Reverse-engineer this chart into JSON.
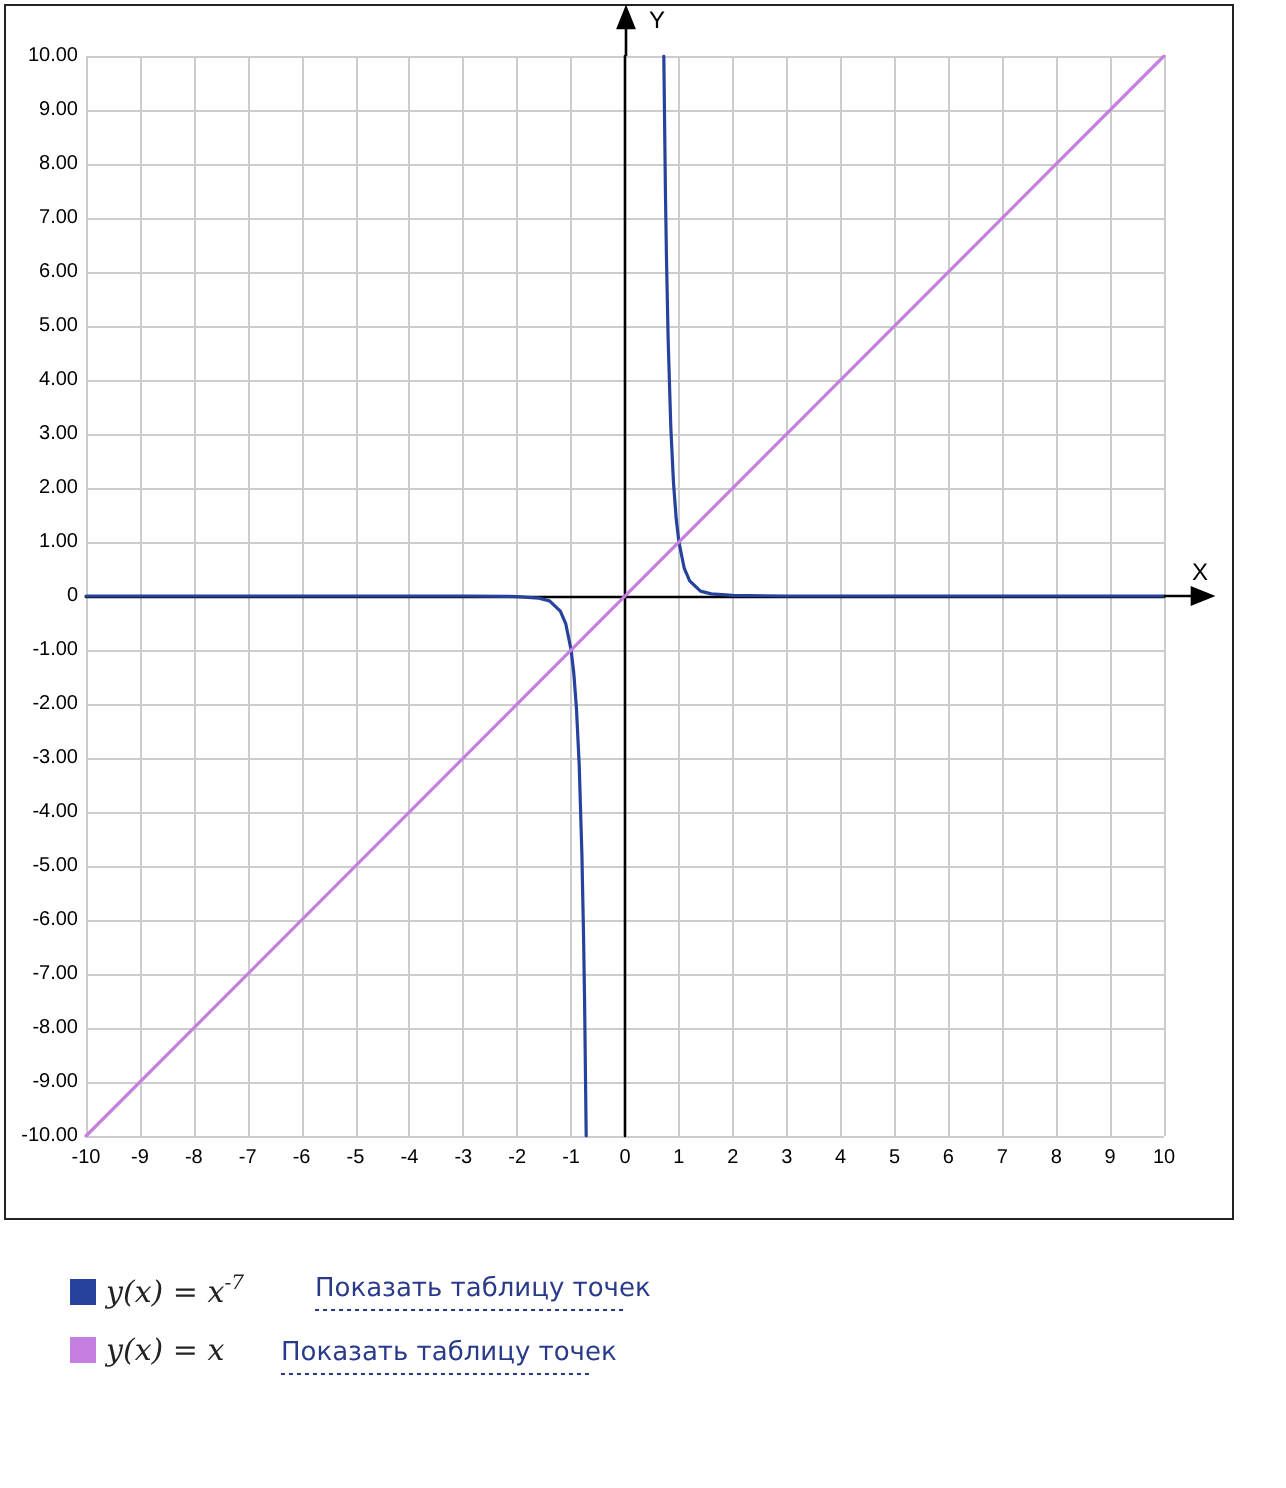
{
  "chart_data": {
    "type": "line",
    "xlabel": "X",
    "ylabel": "Y",
    "series": [
      {
        "name": "y(x) = x$^{-7}$",
        "color": "#26429c",
        "x": [
          -10,
          -5,
          -3,
          -2,
          -1.6,
          -1.4,
          -1.2,
          -1.1,
          -1,
          -0.95,
          -0.9,
          -0.85,
          -0.8,
          -0.77,
          -0.75,
          -0.72,
          0,
          0.72,
          0.75,
          0.77,
          0.8,
          0.85,
          0.9,
          0.95,
          1,
          1.1,
          1.2,
          1.4,
          1.6,
          2,
          3,
          5,
          10
        ],
        "values": [
          0,
          0,
          0,
          -0.01,
          -0.04,
          -0.09,
          -0.28,
          -0.51,
          -1,
          -1.43,
          -2.09,
          -3.12,
          -4.77,
          -6.24,
          -7.49,
          -10,
          null,
          10,
          7.49,
          6.24,
          4.77,
          3.12,
          2.09,
          1.43,
          1,
          0.51,
          0.28,
          0.09,
          0.04,
          0.01,
          0,
          0,
          0
        ]
      },
      {
        "name": "y(x) = x",
        "color": "#c47fe0",
        "x": [
          -10,
          10
        ],
        "values": [
          -10,
          10
        ]
      }
    ],
    "xlim": [
      -10,
      10
    ],
    "xticks": [
      -10,
      -9,
      -8,
      -7,
      -6,
      -5,
      -4,
      -3,
      -2,
      -1,
      0,
      1,
      2,
      3,
      4,
      5,
      6,
      7,
      8,
      9,
      10
    ],
    "ylim": [
      -10,
      10
    ],
    "yticks": [
      {
        "value": -10,
        "label": "-10.00"
      },
      {
        "value": -9,
        "label": "-9.00"
      },
      {
        "value": -8,
        "label": "-8.00"
      },
      {
        "value": -7,
        "label": "-7.00"
      },
      {
        "value": -6,
        "label": "-6.00"
      },
      {
        "value": -5,
        "label": "-5.00"
      },
      {
        "value": -4,
        "label": "-4.00"
      },
      {
        "value": -3,
        "label": "-3.00"
      },
      {
        "value": -2,
        "label": "-2.00"
      },
      {
        "value": -1,
        "label": "-1.00"
      },
      0,
      {
        "value": 1,
        "label": "1.00"
      },
      {
        "value": 2,
        "label": "2.00"
      },
      {
        "value": 3,
        "label": "3.00"
      },
      {
        "value": 4,
        "label": "4.00"
      },
      {
        "value": 5,
        "label": "5.00"
      },
      {
        "value": 6,
        "label": "6.00"
      },
      {
        "value": 7,
        "label": "7.00"
      },
      {
        "value": 8,
        "label": "8.00"
      },
      {
        "value": 9,
        "label": "9.00"
      },
      {
        "value": 10,
        "label": "10.00"
      }
    ],
    "grid": true,
    "legend": "bottom left",
    "marker": "none",
    "line_style": "solid",
    "annotations": [
      "Показать таблицу точек",
      "Показать таблицу точек"
    ]
  }
}
